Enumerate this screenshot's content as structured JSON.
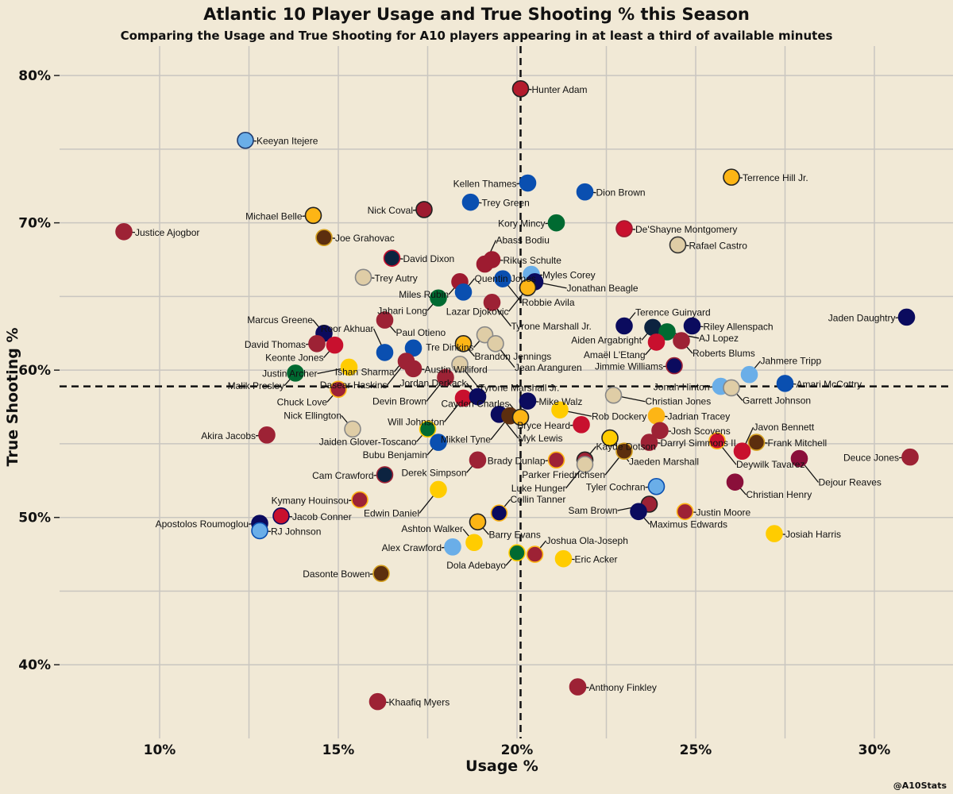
{
  "chart_data": {
    "type": "scatter",
    "title": "Atlantic 10 Player Usage and True Shooting % this Season",
    "subtitle": "Comparing the Usage and True Shooting for A10 players appearing in at least a third of available minutes",
    "xlabel": "Usage %",
    "ylabel": "True Shooting %",
    "credit": "@A10Stats",
    "xlim": [
      7.2,
      32.2
    ],
    "ylim": [
      35.0,
      82.0
    ],
    "xticks": [
      10,
      15,
      20,
      25,
      30
    ],
    "yticks": [
      40,
      50,
      60,
      70,
      80
    ],
    "xtick_labels": [
      "10%",
      "15%",
      "20%",
      "25%",
      "30%"
    ],
    "ytick_labels": [
      "40%",
      "50%",
      "60%",
      "70%",
      "80%"
    ],
    "avg_usage": 20.1,
    "avg_ts": 58.9,
    "players": [
      {
        "name": "Hunter Adam",
        "usage": 20.1,
        "ts": 79.1,
        "fill": "#b31b2c",
        "edge": "#222222"
      },
      {
        "name": "Keeyan Itejere",
        "usage": 12.4,
        "ts": 75.6,
        "fill": "#6aaee8",
        "edge": "#1e3a6e"
      },
      {
        "name": "Terrence Hill Jr.",
        "usage": 26.0,
        "ts": 73.1,
        "fill": "#fdb515",
        "edge": "#222222"
      },
      {
        "name": "Kellen Thames",
        "usage": 20.3,
        "ts": 72.7,
        "fill": "#0a4fb0",
        "edge": "#0a4fb0"
      },
      {
        "name": "Dion Brown",
        "usage": 21.9,
        "ts": 72.1,
        "fill": "#0a4fb0",
        "edge": "#0a4fb0"
      },
      {
        "name": "Trey Green",
        "usage": 18.7,
        "ts": 71.4,
        "fill": "#0a4fb0",
        "edge": "#0a4fb0"
      },
      {
        "name": "Nick Coval",
        "usage": 17.4,
        "ts": 70.9,
        "fill": "#9d1b30",
        "edge": "#222222"
      },
      {
        "name": "Michael Belle",
        "usage": 14.3,
        "ts": 70.5,
        "fill": "#fdb515",
        "edge": "#222222"
      },
      {
        "name": "Kory Mincy",
        "usage": 21.1,
        "ts": 70.0,
        "fill": "#006a31",
        "edge": "#006a31"
      },
      {
        "name": "De'Shayne Montgomery",
        "usage": 23.0,
        "ts": 69.6,
        "fill": "#c8102e",
        "edge": "#9d1b30"
      },
      {
        "name": "Justice Ajogbor",
        "usage": 9.0,
        "ts": 69.4,
        "fill": "#9d2235",
        "edge": "#9d2235"
      },
      {
        "name": "Joe Grahovac",
        "usage": 14.6,
        "ts": 69.0,
        "fill": "#5c2e0e",
        "edge": "#d4a020"
      },
      {
        "name": "Rafael Castro",
        "usage": 24.5,
        "ts": 68.5,
        "fill": "#dfcda6",
        "edge": "#333333"
      },
      {
        "name": "David Dixon",
        "usage": 16.5,
        "ts": 67.6,
        "fill": "#0c2340",
        "edge": "#c8102e"
      },
      {
        "name": "Rikus Schulte",
        "usage": 19.3,
        "ts": 67.5,
        "fill": "#9d1b30",
        "edge": "#9d1b30"
      },
      {
        "name": "Abass Bodiu",
        "usage": 19.1,
        "ts": 67.2,
        "fill": "#9d1b30",
        "edge": "#9d1b30"
      },
      {
        "name": "Myles Corey",
        "usage": 20.4,
        "ts": 66.5,
        "fill": "#6aaee8",
        "edge": "#6aaee8"
      },
      {
        "name": "Trey Autry",
        "usage": 15.7,
        "ts": 66.3,
        "fill": "#dfcda6",
        "edge": "#888888"
      },
      {
        "name": "Robbie Avila",
        "usage": 19.6,
        "ts": 66.2,
        "fill": "#0a4fb0",
        "edge": "#0a4fb0"
      },
      {
        "name": "Miles Rubin",
        "usage": 18.4,
        "ts": 66.0,
        "fill": "#9d1b30",
        "edge": "#9d1b30"
      },
      {
        "name": "Jonathan Beagle",
        "usage": 20.5,
        "ts": 66.0,
        "fill": "#0b0b5e",
        "edge": "#0b0b5e"
      },
      {
        "name": "Lazar Djokovic",
        "usage": 20.3,
        "ts": 65.6,
        "fill": "#fdb515",
        "edge": "#222222"
      },
      {
        "name": "Quentin Jones",
        "usage": 18.5,
        "ts": 65.3,
        "fill": "#0a4fb0",
        "edge": "#0a4fb0"
      },
      {
        "name": "Jahari Long",
        "usage": 17.8,
        "ts": 64.9,
        "fill": "#006a31",
        "edge": "#006a31"
      },
      {
        "name": "Tyrone Marshall Jr.",
        "usage": 19.3,
        "ts": 64.6,
        "fill": "#9d2235",
        "edge": "#9d2235"
      },
      {
        "name": "Jaden Daughtry",
        "usage": 30.9,
        "ts": 63.6,
        "fill": "#0b0b5e",
        "edge": "#0b0b5e"
      },
      {
        "name": "Paul Otieno",
        "usage": 16.3,
        "ts": 63.4,
        "fill": "#9d2235",
        "edge": "#9d2235"
      },
      {
        "name": "Terence Guinyard",
        "usage": 23.0,
        "ts": 63.0,
        "fill": "#0b0b5e",
        "edge": "#0b0b5e"
      },
      {
        "name": "Aiden Argabright",
        "usage": 23.8,
        "ts": 62.9,
        "fill": "#0c2340",
        "edge": "#0c2340"
      },
      {
        "name": "Riley Allenspach",
        "usage": 24.9,
        "ts": 63.0,
        "fill": "#0b0b5e",
        "edge": "#0b0b5e"
      },
      {
        "name": "AJ Lopez",
        "usage": 24.2,
        "ts": 62.6,
        "fill": "#006a31",
        "edge": "#006a31"
      },
      {
        "name": "Marcus Greene",
        "usage": 14.6,
        "ts": 62.5,
        "fill": "#0b0b5e",
        "edge": "#0b0b5e"
      },
      {
        "name": "Brandon Jennings",
        "usage": 18.5,
        "ts": 61.8,
        "fill": "#fdb515",
        "edge": "#222222"
      },
      {
        "name": "Tre Dinkins",
        "usage": 19.1,
        "ts": 62.4,
        "fill": "#dfcda6",
        "edge": "#888888"
      },
      {
        "name": "Amaël L'Etang",
        "usage": 23.9,
        "ts": 61.9,
        "fill": "#c8102e",
        "edge": "#c8102e"
      },
      {
        "name": "Roberts Blums",
        "usage": 24.6,
        "ts": 62.0,
        "fill": "#9d2235",
        "edge": "#9d2235"
      },
      {
        "name": "Jean Aranguren",
        "usage": 19.4,
        "ts": 61.8,
        "fill": "#dfcda6",
        "edge": "#888888"
      },
      {
        "name": "David Thomas",
        "usage": 14.4,
        "ts": 61.8,
        "fill": "#9d2235",
        "edge": "#9d2235"
      },
      {
        "name": "Keonte Jones",
        "usage": 14.9,
        "ts": 61.7,
        "fill": "#c8102e",
        "edge": "#c8102e"
      },
      {
        "name": "Ishan Sharma",
        "usage": 17.1,
        "ts": 61.5,
        "fill": "#0a4fb0",
        "edge": "#0a4fb0"
      },
      {
        "name": "Roor Akhuar",
        "usage": 16.3,
        "ts": 61.2,
        "fill": "#0a4fb0",
        "edge": "#0a4fb0"
      },
      {
        "name": "Dasear Haskins",
        "usage": 16.9,
        "ts": 60.6,
        "fill": "#9d2235",
        "edge": "#9d2235"
      },
      {
        "name": "Jimmie Williams",
        "usage": 24.4,
        "ts": 60.3,
        "fill": "#0b0b5e",
        "edge": "#9d2235"
      },
      {
        "name": "Tyrone Marshall Jr.",
        "usage": 18.4,
        "ts": 60.4,
        "fill": "#dfcda6",
        "edge": "#888888"
      },
      {
        "name": "Justin Archer",
        "usage": 15.3,
        "ts": 60.2,
        "fill": "#ffcc00",
        "edge": "#ffcc00"
      },
      {
        "name": "Austin Williford",
        "usage": 17.1,
        "ts": 60.1,
        "fill": "#9d2235",
        "edge": "#9d2235"
      },
      {
        "name": "Malik Presley",
        "usage": 13.8,
        "ts": 59.8,
        "fill": "#006a31",
        "edge": "#006a31"
      },
      {
        "name": "Jahmere Tripp",
        "usage": 26.5,
        "ts": 59.7,
        "fill": "#6aaee8",
        "edge": "#6aaee8"
      },
      {
        "name": "Devin Brown",
        "usage": 18.0,
        "ts": 59.5,
        "fill": "#9d2235",
        "edge": "#9d2235"
      },
      {
        "name": "Amari McCottry",
        "usage": 27.5,
        "ts": 59.1,
        "fill": "#0a4fb0",
        "edge": "#0a4fb0"
      },
      {
        "name": "Jonah Hinton",
        "usage": 25.7,
        "ts": 58.9,
        "fill": "#6aaee8",
        "edge": "#6aaee8"
      },
      {
        "name": "Garrett Johnson",
        "usage": 26.0,
        "ts": 58.8,
        "fill": "#dfcda6",
        "edge": "#888888"
      },
      {
        "name": "Chuck Love",
        "usage": 15.0,
        "ts": 58.7,
        "fill": "#9d2235",
        "edge": "#fdb515"
      },
      {
        "name": "Christian Jones",
        "usage": 22.7,
        "ts": 58.3,
        "fill": "#dfcda6",
        "edge": "#888888"
      },
      {
        "name": "Will Johnston",
        "usage": 18.5,
        "ts": 58.1,
        "fill": "#c8102e",
        "edge": "#c8102e"
      },
      {
        "name": "Jordan Derkack",
        "usage": 18.9,
        "ts": 58.2,
        "fill": "#0b0b5e",
        "edge": "#0b0b5e"
      },
      {
        "name": "Mike Walz",
        "usage": 20.3,
        "ts": 57.9,
        "fill": "#0b0b5e",
        "edge": "#0b0b5e"
      },
      {
        "name": "Rob Dockery",
        "usage": 21.2,
        "ts": 57.3,
        "fill": "#ffcc00",
        "edge": "#ffcc00"
      },
      {
        "name": "Myk Lewis",
        "usage": 19.5,
        "ts": 57.0,
        "fill": "#0b0b5e",
        "edge": "#0b0b5e"
      },
      {
        "name": "Mikkel Tyne",
        "usage": 19.8,
        "ts": 56.9,
        "fill": "#5c2e0e",
        "edge": "#5c2e0e"
      },
      {
        "name": "Cayden Charles",
        "usage": 20.1,
        "ts": 56.8,
        "fill": "#fdb515",
        "edge": "#222222"
      },
      {
        "name": "Jadrian Tracey",
        "usage": 23.9,
        "ts": 56.9,
        "fill": "#fdb515",
        "edge": "#fdb515"
      },
      {
        "name": "Bryce Heard",
        "usage": 21.8,
        "ts": 56.3,
        "fill": "#c8102e",
        "edge": "#c8102e"
      },
      {
        "name": "Nick Ellington",
        "usage": 15.4,
        "ts": 56.0,
        "fill": "#dfcda6",
        "edge": "#888888"
      },
      {
        "name": "Jaiden Glover-Toscano",
        "usage": 17.5,
        "ts": 56.0,
        "fill": "#006a31",
        "edge": "#ffcc00"
      },
      {
        "name": "Josh Scovens",
        "usage": 24.0,
        "ts": 55.9,
        "fill": "#9d2235",
        "edge": "#9d2235"
      },
      {
        "name": "Akira Jacobs",
        "usage": 13.0,
        "ts": 55.6,
        "fill": "#9d2235",
        "edge": "#9d2235"
      },
      {
        "name": "Jaeden Marshall",
        "usage": 22.6,
        "ts": 55.4,
        "fill": "#ffcc00",
        "edge": "#222222"
      },
      {
        "name": "Deywilk Tavarez",
        "usage": 25.6,
        "ts": 55.2,
        "fill": "#c8102e",
        "edge": "#fdb515"
      },
      {
        "name": "Frank Mitchell",
        "usage": 26.7,
        "ts": 55.1,
        "fill": "#5c2e0e",
        "edge": "#d4a020"
      },
      {
        "name": "Bubu Benjamin",
        "usage": 17.8,
        "ts": 55.1,
        "fill": "#0a4fb0",
        "edge": "#0a4fb0"
      },
      {
        "name": "Darryl Simmons II",
        "usage": 23.7,
        "ts": 55.1,
        "fill": "#9d2235",
        "edge": "#9d2235"
      },
      {
        "name": "Parker Friedrichsen",
        "usage": 23.0,
        "ts": 54.5,
        "fill": "#5c2e0e",
        "edge": "#d4a020"
      },
      {
        "name": "Javon Bennett",
        "usage": 26.3,
        "ts": 54.5,
        "fill": "#c8102e",
        "edge": "#c8102e"
      },
      {
        "name": "Deuce Jones",
        "usage": 31.0,
        "ts": 54.1,
        "fill": "#9d2235",
        "edge": "#9d2235"
      },
      {
        "name": "Dejour Reaves",
        "usage": 27.9,
        "ts": 54.0,
        "fill": "#8a0f3a",
        "edge": "#8a0f3a"
      },
      {
        "name": "Brady Dunlap",
        "usage": 21.1,
        "ts": 53.9,
        "fill": "#9d2235",
        "edge": "#fdb515"
      },
      {
        "name": "Kayde Dotson",
        "usage": 21.9,
        "ts": 53.9,
        "fill": "#9d2235",
        "edge": "#222222"
      },
      {
        "name": "Derek Simpson",
        "usage": 18.9,
        "ts": 53.9,
        "fill": "#9d2235",
        "edge": "#9d2235"
      },
      {
        "name": "Luke Hunger",
        "usage": 21.9,
        "ts": 53.6,
        "fill": "#dfcda6",
        "edge": "#888888"
      },
      {
        "name": "Cam Crawford",
        "usage": 16.3,
        "ts": 52.9,
        "fill": "#0c2340",
        "edge": "#9d2235"
      },
      {
        "name": "Christian Henry",
        "usage": 26.1,
        "ts": 52.4,
        "fill": "#8a0f3a",
        "edge": "#8a0f3a"
      },
      {
        "name": "Tyler Cochran",
        "usage": 23.9,
        "ts": 52.1,
        "fill": "#6aaee8",
        "edge": "#0a4fb0"
      },
      {
        "name": "Edwin Daniel",
        "usage": 17.8,
        "ts": 51.9,
        "fill": "#ffcc00",
        "edge": "#ffcc00"
      },
      {
        "name": "Kymany Houinsou",
        "usage": 15.6,
        "ts": 51.2,
        "fill": "#9d2235",
        "edge": "#fdb515"
      },
      {
        "name": "Sam Brown",
        "usage": 23.7,
        "ts": 50.9,
        "fill": "#9d2235",
        "edge": "#222222"
      },
      {
        "name": "Maximus Edwards",
        "usage": 23.4,
        "ts": 50.4,
        "fill": "#0b0b5e",
        "edge": "#0b0b5e"
      },
      {
        "name": "Justin Moore",
        "usage": 24.7,
        "ts": 50.4,
        "fill": "#9d2235",
        "edge": "#fdb515"
      },
      {
        "name": "Collin Tanner",
        "usage": 19.5,
        "ts": 50.3,
        "fill": "#0b0b5e",
        "edge": "#fdb515"
      },
      {
        "name": "Jacob Conner",
        "usage": 13.4,
        "ts": 50.1,
        "fill": "#c8102e",
        "edge": "#0b0b5e"
      },
      {
        "name": "Apostolos Roumoglou",
        "usage": 12.8,
        "ts": 49.6,
        "fill": "#0b0b5e",
        "edge": "#0b0b5e"
      },
      {
        "name": "RJ Johnson",
        "usage": 12.8,
        "ts": 49.1,
        "fill": "#6aaee8",
        "edge": "#0a4fb0"
      },
      {
        "name": "Barry Evans",
        "usage": 18.9,
        "ts": 49.7,
        "fill": "#fdb515",
        "edge": "#222222"
      },
      {
        "name": "Josiah Harris",
        "usage": 27.2,
        "ts": 48.9,
        "fill": "#ffcc00",
        "edge": "#ffcc00"
      },
      {
        "name": "Ashton Walker",
        "usage": 18.8,
        "ts": 48.3,
        "fill": "#ffcc00",
        "edge": "#ffcc00"
      },
      {
        "name": "Alex Crawford",
        "usage": 18.2,
        "ts": 48.0,
        "fill": "#6aaee8",
        "edge": "#6aaee8"
      },
      {
        "name": "Dola Adebayo",
        "usage": 20.0,
        "ts": 47.6,
        "fill": "#006a31",
        "edge": "#ffcc00"
      },
      {
        "name": "Joshua Ola-Joseph",
        "usage": 20.5,
        "ts": 47.5,
        "fill": "#9d2235",
        "edge": "#fdb515"
      },
      {
        "name": "Eric Acker",
        "usage": 21.3,
        "ts": 47.2,
        "fill": "#ffcc00",
        "edge": "#ffcc00"
      },
      {
        "name": "Dasonte Bowen",
        "usage": 16.2,
        "ts": 46.2,
        "fill": "#5c2e0e",
        "edge": "#d4a020"
      },
      {
        "name": "Anthony Finkley",
        "usage": 21.7,
        "ts": 38.5,
        "fill": "#9d2235",
        "edge": "#9d2235"
      },
      {
        "name": "Khaafiq Myers",
        "usage": 16.1,
        "ts": 37.5,
        "fill": "#9d2235",
        "edge": "#9d2235"
      }
    ]
  }
}
